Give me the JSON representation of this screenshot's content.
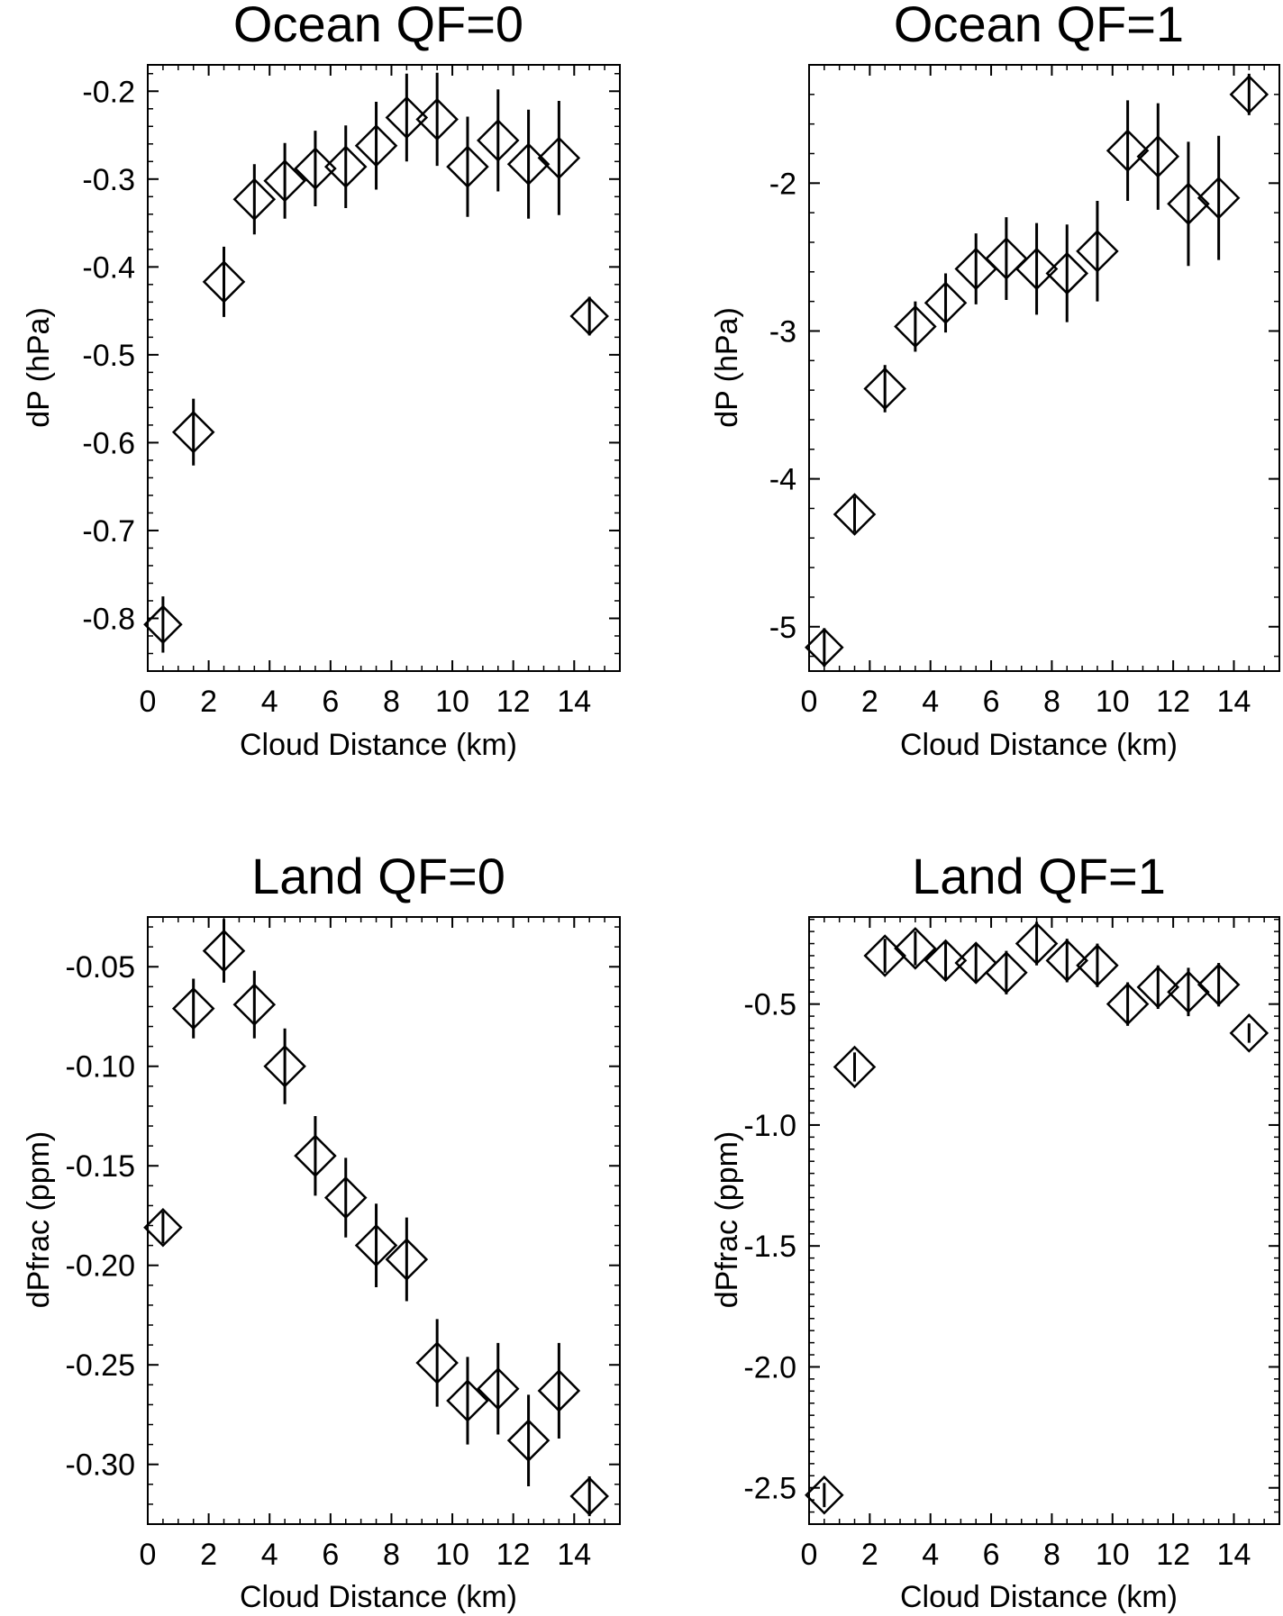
{
  "chart_data": [
    {
      "type": "scatter",
      "title": "Ocean QF=0",
      "xlabel": "Cloud Distance (km)",
      "ylabel": "dP (hPa)",
      "xlim": [
        0,
        15.5
      ],
      "ylim": [
        -0.86,
        -0.17
      ],
      "xticks": [
        0,
        2,
        4,
        6,
        8,
        10,
        12,
        14
      ],
      "yticks": [
        -0.8,
        -0.7,
        -0.6,
        -0.5,
        -0.4,
        -0.3,
        -0.2
      ],
      "ytick_labels": [
        "-0.8",
        "-0.7",
        "-0.6",
        "-0.5",
        "-0.4",
        "-0.3",
        "-0.2"
      ],
      "x_minor_step": 0.5,
      "y_minor_step": 0.02,
      "marker": "diamond",
      "grid": false,
      "series": [
        {
          "x": [
            0.5,
            1.5,
            2.5,
            3.5,
            4.5,
            5.5,
            6.5,
            7.5,
            8.5,
            9.5,
            10.5,
            11.5,
            12.5,
            13.5,
            14.5
          ],
          "y": [
            -0.807,
            -0.588,
            -0.417,
            -0.323,
            -0.302,
            -0.288,
            -0.286,
            -0.262,
            -0.23,
            -0.232,
            -0.286,
            -0.256,
            -0.283,
            -0.276,
            -0.456
          ],
          "err": [
            0.032,
            0.038,
            0.04,
            0.04,
            0.043,
            0.043,
            0.047,
            0.05,
            0.05,
            0.053,
            0.057,
            0.058,
            0.062,
            0.065,
            0.022
          ]
        }
      ]
    },
    {
      "type": "scatter",
      "title": "Ocean QF=1",
      "xlabel": "Cloud Distance (km)",
      "ylabel": "dP (hPa)",
      "xlim": [
        0,
        15.5
      ],
      "ylim": [
        -5.3,
        -1.2
      ],
      "xticks": [
        0,
        2,
        4,
        6,
        8,
        10,
        12,
        14
      ],
      "yticks": [
        -5,
        -4,
        -3,
        -2
      ],
      "ytick_labels": [
        "-5",
        "-4",
        "-3",
        "-2"
      ],
      "x_minor_step": 0.5,
      "y_minor_step": 0.2,
      "marker": "diamond",
      "grid": false,
      "series": [
        {
          "x": [
            0.5,
            1.5,
            2.5,
            3.5,
            4.5,
            5.5,
            6.5,
            7.5,
            8.5,
            9.5,
            10.5,
            11.5,
            12.5,
            13.5,
            14.5
          ],
          "y": [
            -5.14,
            -4.24,
            -3.39,
            -2.97,
            -2.81,
            -2.58,
            -2.51,
            -2.58,
            -2.61,
            -2.46,
            -1.78,
            -1.82,
            -2.14,
            -2.1,
            -1.4
          ],
          "err": [
            0.13,
            0.12,
            0.16,
            0.17,
            0.2,
            0.24,
            0.28,
            0.31,
            0.33,
            0.34,
            0.34,
            0.36,
            0.42,
            0.42,
            0.14
          ]
        }
      ]
    },
    {
      "type": "scatter",
      "title": "Land QF=0",
      "xlabel": "Cloud Distance (km)",
      "ylabel": "dPfrac (ppm)",
      "xlim": [
        0,
        15.5
      ],
      "ylim": [
        -0.33,
        -0.025
      ],
      "xticks": [
        0,
        2,
        4,
        6,
        8,
        10,
        12,
        14
      ],
      "yticks": [
        -0.3,
        -0.25,
        -0.2,
        -0.15,
        -0.1,
        -0.05
      ],
      "ytick_labels": [
        "-0.30",
        "-0.25",
        "-0.20",
        "-0.15",
        "-0.10",
        "-0.05"
      ],
      "x_minor_step": 0.5,
      "y_minor_step": 0.01,
      "marker": "diamond",
      "grid": false,
      "series": [
        {
          "x": [
            0.5,
            1.5,
            2.5,
            3.5,
            4.5,
            5.5,
            6.5,
            7.5,
            8.5,
            9.5,
            10.5,
            11.5,
            12.5,
            13.5,
            14.5
          ],
          "y": [
            -0.181,
            -0.071,
            -0.042,
            -0.069,
            -0.1,
            -0.145,
            -0.166,
            -0.19,
            -0.197,
            -0.249,
            -0.268,
            -0.262,
            -0.288,
            -0.263,
            -0.316
          ],
          "err": [
            0.008,
            0.015,
            0.016,
            0.017,
            0.019,
            0.02,
            0.02,
            0.021,
            0.021,
            0.022,
            0.022,
            0.023,
            0.023,
            0.024,
            0.01
          ]
        }
      ]
    },
    {
      "type": "scatter",
      "title": "Land QF=1",
      "xlabel": "Cloud Distance (km)",
      "ylabel": "dPfrac (ppm)",
      "xlim": [
        0,
        15.5
      ],
      "ylim": [
        -2.65,
        -0.14
      ],
      "xticks": [
        0,
        2,
        4,
        6,
        8,
        10,
        12,
        14
      ],
      "yticks": [
        -2.5,
        -2.0,
        -1.5,
        -1.0,
        -0.5
      ],
      "ytick_labels": [
        "-2.5",
        "-2.0",
        "-1.5",
        "-1.0",
        "-0.5"
      ],
      "x_minor_step": 0.5,
      "y_minor_step": 0.05,
      "marker": "diamond",
      "grid": false,
      "series": [
        {
          "x": [
            0.5,
            1.5,
            2.5,
            3.5,
            4.5,
            5.5,
            6.5,
            7.5,
            8.5,
            9.5,
            10.5,
            11.5,
            12.5,
            13.5,
            14.5
          ],
          "y": [
            -2.53,
            -0.76,
            -0.3,
            -0.27,
            -0.32,
            -0.33,
            -0.37,
            -0.25,
            -0.32,
            -0.34,
            -0.5,
            -0.43,
            -0.45,
            -0.42,
            -0.62
          ],
          "err": [
            0.05,
            0.06,
            0.07,
            0.07,
            0.08,
            0.08,
            0.09,
            0.09,
            0.09,
            0.09,
            0.09,
            0.09,
            0.1,
            0.09,
            0.04
          ]
        }
      ]
    }
  ]
}
